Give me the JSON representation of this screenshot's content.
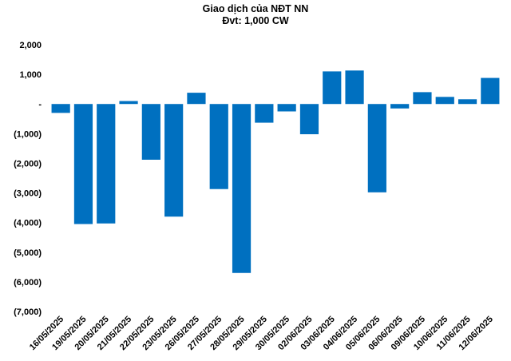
{
  "chart_data": {
    "type": "bar",
    "title": "Giao dịch của NĐT NN",
    "subtitle": "Đvt: 1,000 CW",
    "xlabel": "",
    "ylabel": "",
    "ylim": [
      -7000,
      2000
    ],
    "yticks": [
      2000,
      1000,
      0,
      -1000,
      -2000,
      -3000,
      -4000,
      -5000,
      -6000,
      -7000
    ],
    "ytick_labels": [
      "2,000",
      "1,000",
      "-",
      "(1,000)",
      "(2,000)",
      "(3,000)",
      "(4,000)",
      "(5,000)",
      "(6,000)",
      "(7,000)"
    ],
    "grid": false,
    "legend": "none",
    "bar_color": "#0070C0",
    "categories": [
      "16/05/2025",
      "19/05/2025",
      "20/05/2025",
      "21/05/2025",
      "22/05/2025",
      "23/05/2025",
      "26/05/2025",
      "27/05/2025",
      "28/05/2025",
      "29/05/2025",
      "30/05/2025",
      "02/06/2025",
      "03/06/2025",
      "04/06/2025",
      "05/06/2025",
      "06/06/2025",
      "09/06/2025",
      "10/06/2025",
      "11/06/2025",
      "12/06/2025"
    ],
    "values": [
      -300,
      -4050,
      -4030,
      100,
      -1880,
      -3800,
      380,
      -2870,
      -5700,
      -630,
      -250,
      -1020,
      1100,
      1130,
      -2980,
      -150,
      400,
      240,
      160,
      880
    ]
  }
}
